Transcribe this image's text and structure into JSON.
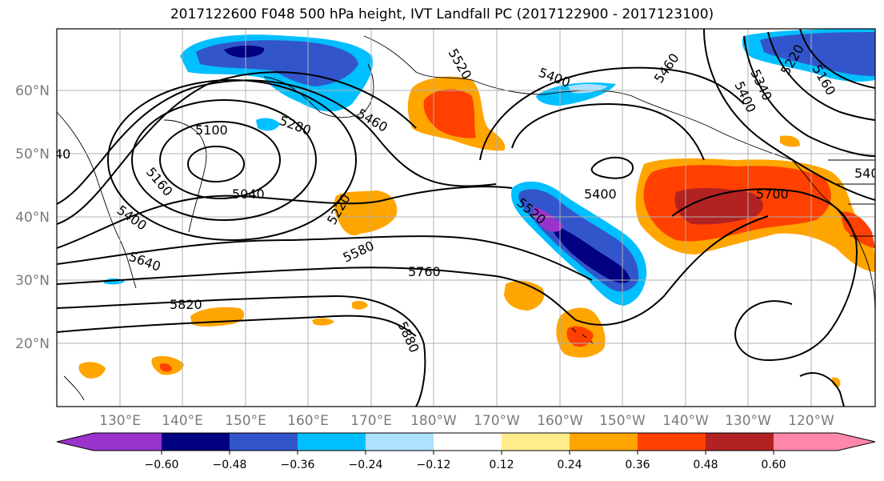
{
  "title": "2017122600 F048 500 hPa height, IVT Landfall PC (2017122900 - 2017123100)",
  "map": {
    "lat_labels": [
      "60°N",
      "50°N",
      "40°N",
      "30°N",
      "20°N"
    ],
    "lon_labels": [
      "130°E",
      "140°E",
      "150°E",
      "160°E",
      "170°E",
      "180°W",
      "170°W",
      "160°W",
      "150°W",
      "140°W",
      "130°W",
      "120°W"
    ],
    "contour_labels": [
      "5100",
      "5040",
      "5160",
      "5280",
      "5400",
      "5220",
      "5520",
      "5460",
      "5580",
      "5640",
      "5760",
      "5820",
      "5880",
      "5400",
      "5460",
      "5520",
      "5700",
      "5400",
      "5220",
      "5160",
      "5340",
      "5400",
      "540",
      "40"
    ]
  },
  "colorbar": {
    "colors": [
      "#9933cc",
      "#000080",
      "#3355cc",
      "#00bfff",
      "#aee0ff",
      "#ffffff",
      "#ffec8b",
      "#ffa500",
      "#ff4000",
      "#b22222",
      "#ff88aa"
    ],
    "tick_labels": [
      "−0.60",
      "−0.48",
      "−0.36",
      "−0.24",
      "−0.12",
      "0.12",
      "0.24",
      "0.36",
      "0.48",
      "0.60"
    ]
  }
}
